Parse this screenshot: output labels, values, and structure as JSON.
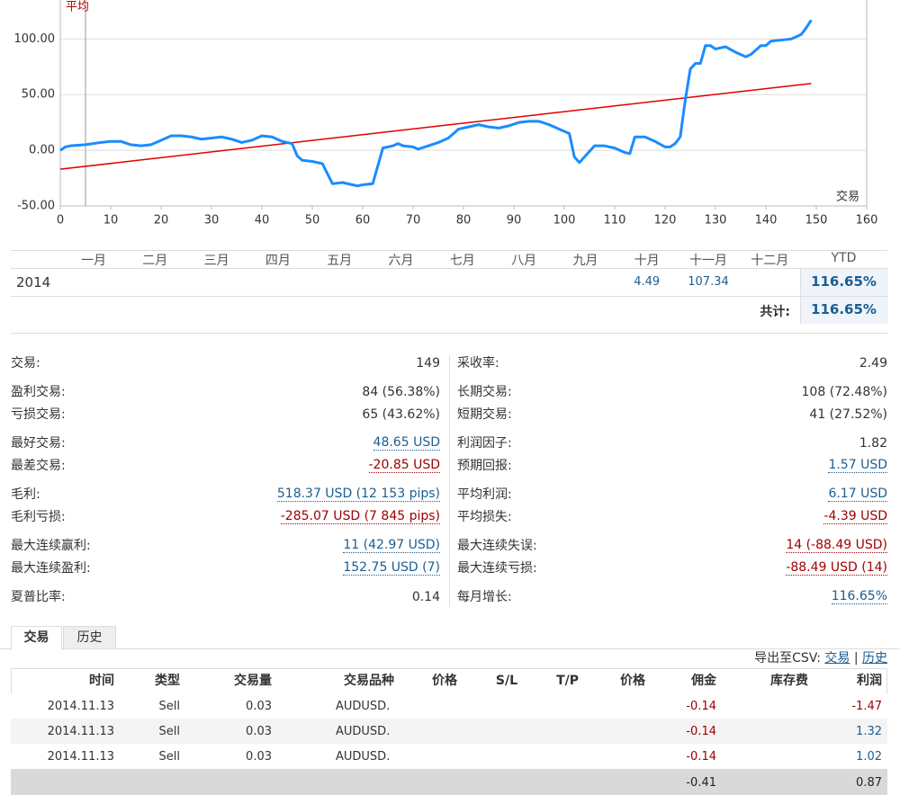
{
  "chart_data": {
    "type": "line",
    "annotation": {
      "text": "平均",
      "x": 5
    },
    "x_label": "交易",
    "xlim": [
      0,
      160
    ],
    "xticks": [
      0,
      10,
      20,
      30,
      40,
      50,
      60,
      70,
      80,
      90,
      100,
      110,
      120,
      130,
      140,
      150,
      160
    ],
    "ylim": [
      -50,
      135
    ],
    "yticks": [
      {
        "value": -50,
        "label": "-50.00"
      },
      {
        "value": 0,
        "label": "0.00"
      },
      {
        "value": 50,
        "label": "50.00"
      },
      {
        "value": 100,
        "label": "100.00"
      }
    ],
    "grid": true,
    "series": [
      {
        "color": "#1a8cff",
        "x": [
          0,
          1,
          2,
          5,
          8,
          10,
          12,
          14,
          16,
          18,
          20,
          22,
          24,
          26,
          28,
          30,
          32,
          34,
          36,
          38,
          40,
          42,
          44,
          46,
          47,
          48,
          50,
          52,
          54,
          56,
          58,
          59,
          60,
          62,
          64,
          66,
          67,
          68,
          70,
          71,
          73,
          75,
          77,
          79,
          81,
          83,
          85,
          87,
          89,
          91,
          93,
          95,
          97,
          99,
          101,
          102,
          103,
          104,
          106,
          108,
          110,
          112,
          113,
          114,
          116,
          118,
          120,
          121,
          122,
          123,
          124,
          125,
          126,
          127,
          128,
          129,
          130,
          132,
          134,
          136,
          137,
          139,
          140,
          141,
          143,
          145,
          147,
          148,
          149
        ],
        "values": [
          0,
          3,
          4,
          5,
          7,
          8,
          8,
          5,
          4,
          5,
          9,
          13,
          13,
          12,
          10,
          11,
          12,
          10,
          7,
          9,
          13,
          12,
          8,
          6,
          -5,
          -9,
          -10,
          -12,
          -30,
          -29,
          -31,
          -32,
          -31,
          -30,
          2,
          4,
          6,
          4,
          3,
          1,
          4,
          7,
          11,
          19,
          21,
          23,
          21,
          20,
          22,
          25,
          26,
          26,
          23,
          19,
          15,
          -6,
          -11,
          -6,
          4,
          4,
          2,
          -2,
          -3,
          12,
          12,
          8,
          3,
          3,
          6,
          12,
          45,
          73,
          78,
          78,
          94,
          94,
          91,
          93,
          88,
          84,
          86,
          94,
          94,
          98,
          99,
          100,
          104,
          110,
          117
        ]
      },
      {
        "color": "#e00000",
        "x": [
          0,
          149
        ],
        "values": [
          -17,
          60
        ]
      }
    ]
  },
  "monthly": {
    "months": [
      "一月",
      "二月",
      "三月",
      "四月",
      "五月",
      "六月",
      "七月",
      "八月",
      "九月",
      "十月",
      "十一月",
      "十二月"
    ],
    "ytd_header": "YTD",
    "year": "2014",
    "values": [
      null,
      null,
      null,
      null,
      null,
      null,
      null,
      null,
      null,
      4.49,
      107.34,
      null
    ],
    "ytd": "116.65%",
    "total_label": "共计:",
    "total": "116.65%"
  },
  "stats": {
    "left": [
      [
        {
          "label": "交易:",
          "value": "149"
        }
      ],
      [
        {
          "label": "盈利交易:",
          "value": "84 (56.38%)"
        },
        {
          "label": "亏损交易:",
          "value": "65 (43.62%)"
        }
      ],
      [
        {
          "label": "最好交易:",
          "value": "48.65 USD",
          "color": "blue"
        },
        {
          "label": "最差交易:",
          "value": "-20.85 USD",
          "color": "red"
        }
      ],
      [
        {
          "label": "毛利:",
          "value": "518.37 USD (12 153 pips)",
          "color": "blue"
        },
        {
          "label": "毛利亏损:",
          "value": "-285.07 USD (7 845 pips)",
          "color": "red"
        }
      ],
      [
        {
          "label": "最大连续赢利:",
          "value": "11 (42.97 USD)",
          "color": "blue"
        },
        {
          "label": "最大连续盈利:",
          "value": "152.75 USD (7)",
          "color": "blue"
        }
      ],
      [
        {
          "label": "夏普比率:",
          "value": "0.14"
        }
      ]
    ],
    "right": [
      [
        {
          "label": "采收率:",
          "value": "2.49"
        }
      ],
      [
        {
          "label": "长期交易:",
          "value": "108 (72.48%)"
        },
        {
          "label": "短期交易:",
          "value": "41 (27.52%)"
        }
      ],
      [
        {
          "label": "利润因子:",
          "value": "1.82"
        },
        {
          "label": "预期回报:",
          "value": "1.57 USD",
          "color": "blue"
        }
      ],
      [
        {
          "label": "平均利润:",
          "value": "6.17 USD",
          "color": "blue"
        },
        {
          "label": "平均损失:",
          "value": "-4.39 USD",
          "color": "red"
        }
      ],
      [
        {
          "label": "最大连续失误:",
          "value": "14 (-88.49 USD)",
          "color": "red"
        },
        {
          "label": "最大连续亏损:",
          "value": "-88.49 USD (14)",
          "color": "red"
        }
      ],
      [
        {
          "label": "每月增长:",
          "value": "116.65%",
          "color": "blue"
        }
      ]
    ]
  },
  "tabs": [
    "交易",
    "历史"
  ],
  "export": {
    "label": "导出至CSV:",
    "links": [
      "交易",
      "历史"
    ],
    "separator": "|"
  },
  "trades": {
    "headers": [
      "时间",
      "类型",
      "交易量",
      "交易品种",
      "价格",
      "S/L",
      "T/P",
      "价格",
      "佣金",
      "库存费",
      "利润"
    ],
    "rows": [
      [
        "2014.11.13",
        "Sell",
        "0.03",
        "AUDUSD.",
        null,
        null,
        null,
        null,
        "-0.14",
        null,
        "-1.47"
      ],
      [
        "2014.11.13",
        "Sell",
        "0.03",
        "AUDUSD.",
        null,
        null,
        null,
        null,
        "-0.14",
        null,
        "1.32"
      ],
      [
        "2014.11.13",
        "Sell",
        "0.03",
        "AUDUSD.",
        null,
        null,
        null,
        null,
        "-0.14",
        null,
        "1.02"
      ]
    ],
    "totals": [
      null,
      null,
      null,
      null,
      null,
      null,
      null,
      null,
      "-0.41",
      null,
      "0.87"
    ]
  }
}
